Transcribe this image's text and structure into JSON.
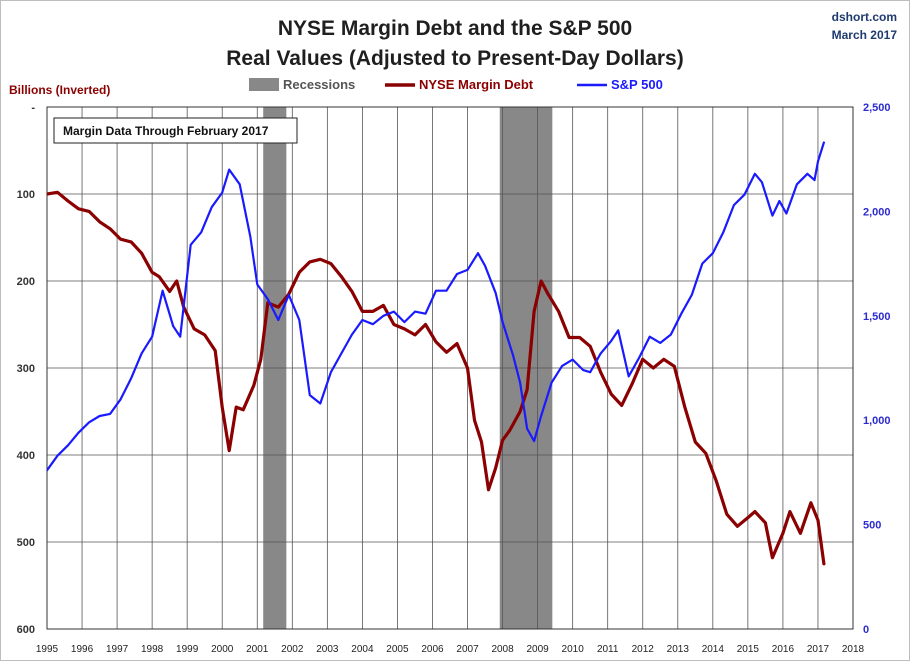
{
  "chart_data": {
    "type": "line",
    "title": "NYSE Margin Debt and the S&P 500",
    "subtitle": "Real Values (Adjusted to Present-Day Dollars)",
    "source": "dshort.com",
    "date": "March 2017",
    "ylabel_left": "Billions (Inverted)",
    "annotation": "Margin Data Through February 2017",
    "legend": [
      "Recessions",
      "NYSE Margin Debt",
      "S&P 500"
    ],
    "colors": {
      "margin": "#8b0000",
      "sp500": "#1a1aff",
      "recession": "#888888",
      "grid": "#555555"
    },
    "xlim": [
      1995,
      2018
    ],
    "x_ticks": [
      "1995",
      "1996",
      "1997",
      "1998",
      "1999",
      "2000",
      "2001",
      "2002",
      "2003",
      "2004",
      "2005",
      "2006",
      "2007",
      "2008",
      "2009",
      "2010",
      "2011",
      "2012",
      "2013",
      "2014",
      "2015",
      "2016",
      "2017",
      "2018"
    ],
    "ylim_left": [
      0,
      600
    ],
    "yticks_left": [
      "-",
      "100",
      "200",
      "300",
      "400",
      "500",
      "600"
    ],
    "ylim_right": [
      0,
      2500
    ],
    "yticks_right": [
      "0",
      "500",
      "1,000",
      "1,500",
      "2,000",
      "2,500"
    ],
    "recessions": [
      [
        2001.17,
        2001.83
      ],
      [
        2007.92,
        2009.42
      ]
    ],
    "series": [
      {
        "name": "NYSE Margin Debt",
        "axis": "left_inverted",
        "x": [
          1995.0,
          1995.3,
          1995.6,
          1995.9,
          1996.2,
          1996.5,
          1996.8,
          1997.1,
          1997.4,
          1997.7,
          1998.0,
          1998.2,
          1998.5,
          1998.7,
          1998.9,
          1999.2,
          1999.5,
          1999.8,
          2000.0,
          2000.2,
          2000.4,
          2000.6,
          2000.9,
          2001.1,
          2001.3,
          2001.6,
          2001.9,
          2002.2,
          2002.5,
          2002.8,
          2003.1,
          2003.4,
          2003.7,
          2004.0,
          2004.3,
          2004.6,
          2004.9,
          2005.2,
          2005.5,
          2005.8,
          2006.1,
          2006.4,
          2006.7,
          2007.0,
          2007.2,
          2007.4,
          2007.6,
          2007.8,
          2008.0,
          2008.2,
          2008.5,
          2008.7,
          2008.9,
          2009.1,
          2009.3,
          2009.6,
          2009.9,
          2010.2,
          2010.5,
          2010.8,
          2011.1,
          2011.4,
          2011.7,
          2012.0,
          2012.3,
          2012.6,
          2012.9,
          2013.2,
          2013.5,
          2013.8,
          2014.1,
          2014.4,
          2014.7,
          2015.0,
          2015.2,
          2015.5,
          2015.7,
          2016.0,
          2016.2,
          2016.5,
          2016.8,
          2017.0,
          2017.17
        ],
        "values": [
          100,
          98,
          108,
          117,
          120,
          132,
          140,
          152,
          155,
          168,
          190,
          195,
          212,
          200,
          230,
          255,
          262,
          280,
          345,
          395,
          345,
          348,
          320,
          290,
          225,
          230,
          215,
          190,
          178,
          175,
          180,
          195,
          212,
          235,
          235,
          228,
          250,
          255,
          262,
          250,
          270,
          282,
          272,
          300,
          360,
          385,
          440,
          415,
          383,
          372,
          350,
          325,
          235,
          200,
          215,
          235,
          265,
          265,
          275,
          305,
          330,
          343,
          318,
          290,
          300,
          290,
          298,
          345,
          385,
          398,
          430,
          468,
          482,
          472,
          465,
          478,
          518,
          490,
          465,
          490,
          455,
          475,
          525
        ]
      },
      {
        "name": "S&P 500",
        "axis": "right",
        "x": [
          1995.0,
          1995.3,
          1995.6,
          1995.9,
          1996.2,
          1996.5,
          1996.8,
          1997.1,
          1997.4,
          1997.7,
          1998.0,
          1998.3,
          1998.6,
          1998.8,
          1999.1,
          1999.4,
          1999.7,
          2000.0,
          2000.2,
          2000.5,
          2000.8,
          2001.0,
          2001.3,
          2001.6,
          2001.9,
          2002.2,
          2002.5,
          2002.8,
          2003.1,
          2003.4,
          2003.7,
          2004.0,
          2004.3,
          2004.6,
          2004.9,
          2005.2,
          2005.5,
          2005.8,
          2006.1,
          2006.4,
          2006.7,
          2007.0,
          2007.3,
          2007.5,
          2007.8,
          2008.0,
          2008.3,
          2008.5,
          2008.7,
          2008.9,
          2009.1,
          2009.4,
          2009.7,
          2010.0,
          2010.3,
          2010.5,
          2010.8,
          2011.1,
          2011.3,
          2011.6,
          2011.9,
          2012.2,
          2012.5,
          2012.8,
          2013.1,
          2013.4,
          2013.7,
          2014.0,
          2014.3,
          2014.6,
          2014.9,
          2015.2,
          2015.4,
          2015.7,
          2015.9,
          2016.1,
          2016.4,
          2016.7,
          2016.9,
          2017.0,
          2017.17
        ],
        "values": [
          760,
          830,
          880,
          940,
          990,
          1020,
          1030,
          1100,
          1200,
          1320,
          1400,
          1620,
          1450,
          1400,
          1840,
          1900,
          2020,
          2090,
          2200,
          2130,
          1880,
          1650,
          1580,
          1480,
          1600,
          1480,
          1120,
          1080,
          1230,
          1320,
          1410,
          1480,
          1460,
          1500,
          1520,
          1470,
          1520,
          1510,
          1620,
          1620,
          1700,
          1720,
          1800,
          1740,
          1610,
          1470,
          1310,
          1180,
          960,
          900,
          1020,
          1180,
          1260,
          1290,
          1240,
          1230,
          1320,
          1380,
          1430,
          1210,
          1300,
          1400,
          1370,
          1410,
          1510,
          1600,
          1750,
          1800,
          1900,
          2030,
          2080,
          2180,
          2140,
          1980,
          2050,
          1990,
          2130,
          2180,
          2150,
          2240,
          2330
        ]
      }
    ]
  }
}
